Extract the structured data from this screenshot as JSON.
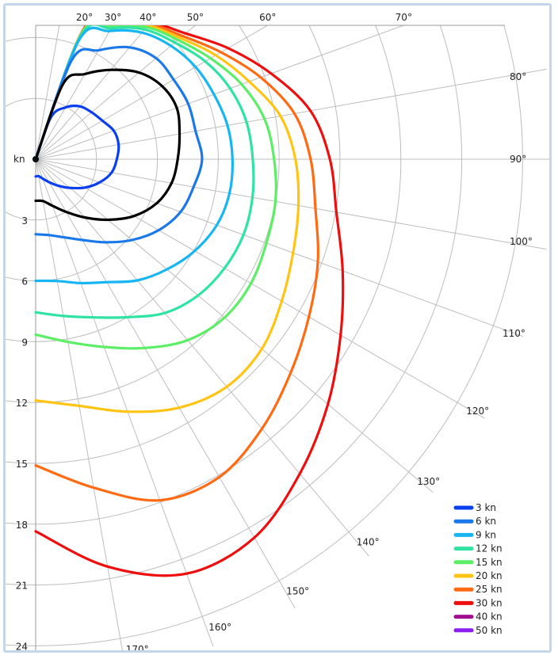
{
  "chart_data": {
    "type": "line",
    "subtype": "polar",
    "title": "",
    "radial_axis": {
      "unit_label": "kn",
      "ticks": [
        3,
        6,
        9,
        12,
        15,
        18,
        21,
        24
      ],
      "range": [
        0,
        24
      ]
    },
    "angular_axis": {
      "unit": "degrees",
      "range": [
        0,
        180
      ],
      "labeled_angles": [
        20,
        30,
        40,
        50,
        60,
        70,
        80,
        90,
        100,
        110,
        120,
        130,
        140,
        150,
        160,
        170
      ],
      "tick_labels": [
        "20°",
        "30°",
        "40°",
        "50°",
        "60°",
        "70°",
        "80°",
        "90°",
        "100°",
        "110°",
        "120°",
        "130°",
        "140°",
        "150°",
        "160°",
        "170°"
      ]
    },
    "grid": true,
    "legend_position": "bottom-right",
    "colors": {
      "3 kn": "#0a3ff0",
      "6 kn": "#1a78e8",
      "9 kn": "#17b6f3",
      "12 kn": "#2fe3a3",
      "15 kn": "#5cee66",
      "20 kn": "#ffc414",
      "25 kn": "#ff6a13",
      "30 kn": "#ee0e0e",
      "40 kn": "#a0108e",
      "50 kn": "#8a1ff0",
      "optimal": "#000000"
    },
    "series": [
      {
        "name": "3 kn",
        "angles": [
          0,
          20,
          30,
          40,
          50,
          60,
          70,
          80,
          90,
          100,
          110,
          120,
          130,
          140,
          150,
          160,
          170,
          180
        ],
        "speeds": [
          0,
          2.2,
          2.95,
          3.4,
          3.6,
          3.8,
          4.1,
          4.15,
          4.0,
          3.8,
          3.35,
          2.8,
          2.2,
          1.7,
          1.3,
          1.02,
          0.85,
          0.85
        ]
      },
      {
        "name": "6 kn",
        "angles": [
          0,
          20,
          30,
          40,
          50,
          60,
          70,
          80,
          90,
          100,
          110,
          120,
          130,
          140,
          150,
          160,
          170,
          180
        ],
        "speeds": [
          0,
          5.2,
          6.2,
          7.2,
          7.75,
          7.85,
          8.0,
          8.0,
          8.2,
          7.9,
          7.6,
          7.0,
          6.2,
          5.35,
          4.6,
          4.1,
          3.8,
          3.7
        ]
      },
      {
        "name": "9 kn",
        "angles": [
          0,
          20,
          30,
          40,
          50,
          60,
          70,
          80,
          90,
          100,
          110,
          120,
          130,
          140,
          150,
          160,
          170,
          180
        ],
        "speeds": [
          0,
          6.25,
          7.3,
          8.15,
          8.7,
          9.1,
          9.35,
          9.6,
          9.7,
          9.7,
          9.5,
          9.05,
          8.45,
          7.8,
          7.0,
          6.5,
          6.1,
          6.0
        ]
      },
      {
        "name": "12 kn",
        "angles": [
          0,
          20,
          30,
          40,
          50,
          60,
          70,
          80,
          90,
          100,
          110,
          120,
          130,
          140,
          150,
          160,
          170,
          180
        ],
        "speeds": [
          0,
          6.45,
          7.45,
          8.35,
          8.95,
          9.65,
          10.2,
          10.55,
          10.7,
          10.85,
          10.9,
          10.75,
          10.45,
          9.9,
          9.0,
          8.3,
          7.85,
          7.55
        ]
      },
      {
        "name": "15 kn",
        "angles": [
          0,
          20,
          30,
          40,
          50,
          60,
          70,
          80,
          90,
          100,
          110,
          120,
          130,
          140,
          150,
          160,
          170,
          180
        ],
        "speeds": [
          0,
          6.55,
          7.55,
          8.5,
          9.15,
          9.95,
          10.8,
          11.45,
          11.75,
          12.0,
          12.1,
          12.25,
          12.15,
          11.65,
          10.75,
          9.85,
          9.15,
          8.65
        ]
      },
      {
        "name": "20 kn",
        "angles": [
          0,
          20,
          30,
          40,
          50,
          60,
          70,
          80,
          90,
          100,
          110,
          120,
          130,
          140,
          150,
          160,
          170,
          180
        ],
        "speeds": [
          0,
          6.6,
          7.65,
          8.6,
          9.3,
          10.25,
          11.2,
          12.25,
          12.8,
          13.15,
          13.5,
          14.0,
          14.55,
          14.65,
          14.15,
          13.25,
          12.35,
          11.9
        ]
      },
      {
        "name": "25 kn",
        "angles": [
          0,
          20,
          30,
          40,
          50,
          60,
          70,
          80,
          90,
          100,
          110,
          120,
          130,
          140,
          150,
          160,
          170,
          180
        ],
        "speeds": [
          0,
          6.65,
          7.7,
          8.7,
          9.45,
          10.55,
          11.8,
          12.95,
          13.55,
          14.0,
          14.8,
          15.55,
          16.4,
          17.35,
          18.1,
          17.9,
          16.45,
          15.1
        ]
      },
      {
        "name": "30 kn",
        "angles": [
          0,
          20,
          30,
          40,
          50,
          60,
          70,
          80,
          90,
          100,
          110,
          120,
          130,
          140,
          150,
          160,
          170,
          180
        ],
        "speeds": [
          0,
          6.7,
          7.75,
          8.8,
          9.65,
          10.95,
          12.35,
          13.75,
          14.5,
          15.05,
          16.1,
          17.35,
          18.8,
          20.25,
          21.55,
          21.75,
          20.4,
          18.35
        ]
      },
      {
        "name": "40 kn",
        "angles": [],
        "speeds": []
      },
      {
        "name": "50 kn",
        "angles": [],
        "speeds": []
      }
    ],
    "optimal_curve": {
      "angles": [
        0,
        20,
        30,
        40,
        50,
        60,
        70,
        80,
        90,
        100,
        110,
        120,
        130,
        140,
        150,
        160,
        170,
        180
      ],
      "speeds": [
        0,
        3.95,
        4.85,
        5.75,
        6.65,
        7.2,
        7.4,
        7.2,
        7.0,
        6.8,
        6.35,
        5.6,
        4.65,
        3.75,
        3.0,
        2.45,
        2.1,
        2.05
      ]
    },
    "legend": [
      "3 kn",
      "6 kn",
      "9 kn",
      "12 kn",
      "15 kn",
      "20 kn",
      "25 kn",
      "30 kn",
      "40 kn",
      "50 kn"
    ]
  }
}
